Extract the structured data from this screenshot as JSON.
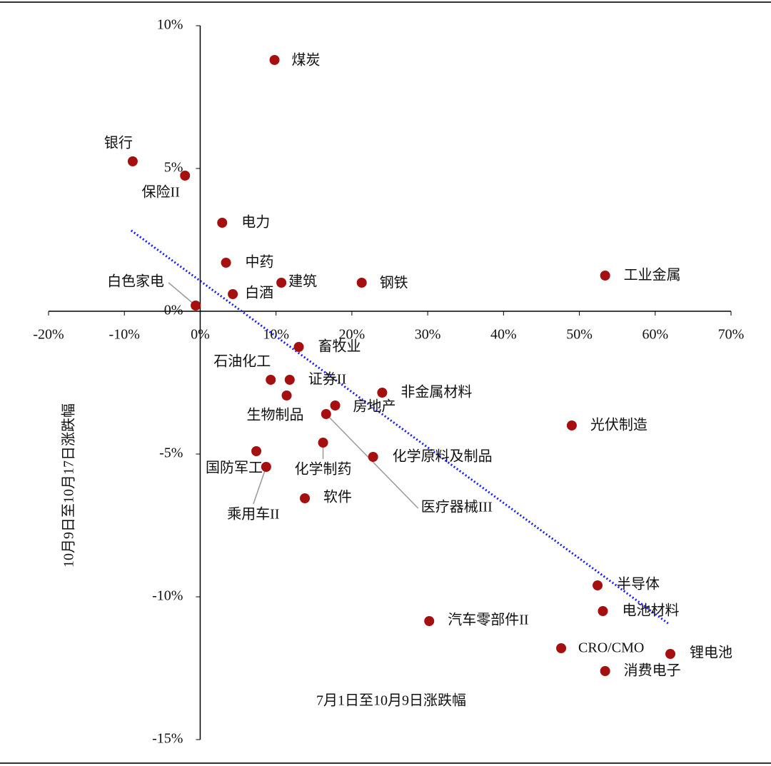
{
  "chart_data": {
    "type": "scatter",
    "x_label": "7月1日至10月9日涨跌幅",
    "y_label": "10月9日至10月17日涨跌幅",
    "xlim": [
      -20,
      70
    ],
    "ylim": [
      -15,
      10
    ],
    "xticks": [
      {
        "value": -20,
        "label": "-20%"
      },
      {
        "value": -10,
        "label": "-10%"
      },
      {
        "value": 0,
        "label": "0%"
      },
      {
        "value": 10,
        "label": "10%"
      },
      {
        "value": 20,
        "label": "20%"
      },
      {
        "value": 30,
        "label": "30%"
      },
      {
        "value": 40,
        "label": "40%"
      },
      {
        "value": 50,
        "label": "50%"
      },
      {
        "value": 60,
        "label": "60%"
      },
      {
        "value": 70,
        "label": "70%"
      }
    ],
    "yticks": [
      {
        "value": -15,
        "label": "-15%"
      },
      {
        "value": -10,
        "label": "-10%"
      },
      {
        "value": -5,
        "label": "-5%"
      },
      {
        "value": 0,
        "label": "0%"
      },
      {
        "value": 5,
        "label": "5%"
      },
      {
        "value": 10,
        "label": "10%"
      }
    ],
    "color": "#a50f0f",
    "labels": [
      "煤炭",
      "银行",
      "保险II",
      "电力",
      "中药",
      "白色家电",
      "白酒",
      "建筑",
      "钢铁",
      "工业金属",
      "畜牧业",
      "石油化工",
      "证券II",
      "生物制品",
      "房地产",
      "非金属材料",
      "医疗器械III",
      "光伏制造",
      "化学制药",
      "国防军工",
      "乘用车II",
      "化学原料及制品",
      "软件",
      "半导体",
      "电池材料",
      "汽车零部件II",
      "CRO/CMO",
      "锂电池",
      "消费电子"
    ],
    "x": [
      9.8,
      -8.9,
      -2.0,
      2.9,
      3.4,
      -0.6,
      4.3,
      10.7,
      21.3,
      53.4,
      13.0,
      9.3,
      11.8,
      11.4,
      17.8,
      24.0,
      16.6,
      49.0,
      16.2,
      7.4,
      8.7,
      22.8,
      13.8,
      52.4,
      53.1,
      30.2,
      47.6,
      62.0,
      53.4
    ],
    "y": [
      8.8,
      5.25,
      4.75,
      3.1,
      1.7,
      0.2,
      0.6,
      1.0,
      1.0,
      1.25,
      -1.25,
      -2.4,
      -2.4,
      -2.95,
      -3.3,
      -2.85,
      -3.6,
      -4.0,
      -4.6,
      -4.9,
      -5.45,
      -5.1,
      -6.55,
      -9.6,
      -10.5,
      -10.85,
      -11.8,
      -12.0,
      -12.6
    ],
    "trendline": {
      "color": "#1a1aff",
      "x": [
        -9.1,
        61.7
      ],
      "y": [
        2.83,
        -10.93
      ]
    }
  }
}
